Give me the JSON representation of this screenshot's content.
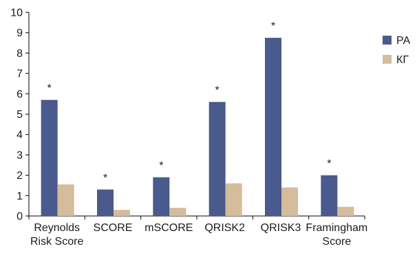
{
  "chart_data": {
    "type": "bar",
    "categories": [
      [
        "Reynolds",
        "Risk Score"
      ],
      [
        "SCORE"
      ],
      [
        "mSCORE"
      ],
      [
        "QRISK2"
      ],
      [
        "QRISK3"
      ],
      [
        "Framingham",
        "Score"
      ]
    ],
    "series": [
      {
        "name": "РА",
        "color": "#4a5a8c",
        "values": [
          5.7,
          1.3,
          1.9,
          5.6,
          8.75,
          2.0
        ]
      },
      {
        "name": "КГ",
        "color": "#d4bc9c",
        "values": [
          1.55,
          0.3,
          0.4,
          1.6,
          1.4,
          0.45
        ]
      }
    ],
    "annotations": [
      {
        "category_index": 0,
        "text": "*"
      },
      {
        "category_index": 1,
        "text": "*"
      },
      {
        "category_index": 2,
        "text": "*"
      },
      {
        "category_index": 3,
        "text": "*"
      },
      {
        "category_index": 4,
        "text": "*"
      },
      {
        "category_index": 5,
        "text": "*"
      }
    ],
    "ylim": [
      0,
      10
    ],
    "yticks": [
      "0",
      "1",
      "2",
      "3",
      "4",
      "5",
      "6",
      "7",
      "8",
      "9",
      "10"
    ],
    "title": "",
    "xlabel": "",
    "ylabel": "",
    "grid": false,
    "legend_position": "right"
  }
}
